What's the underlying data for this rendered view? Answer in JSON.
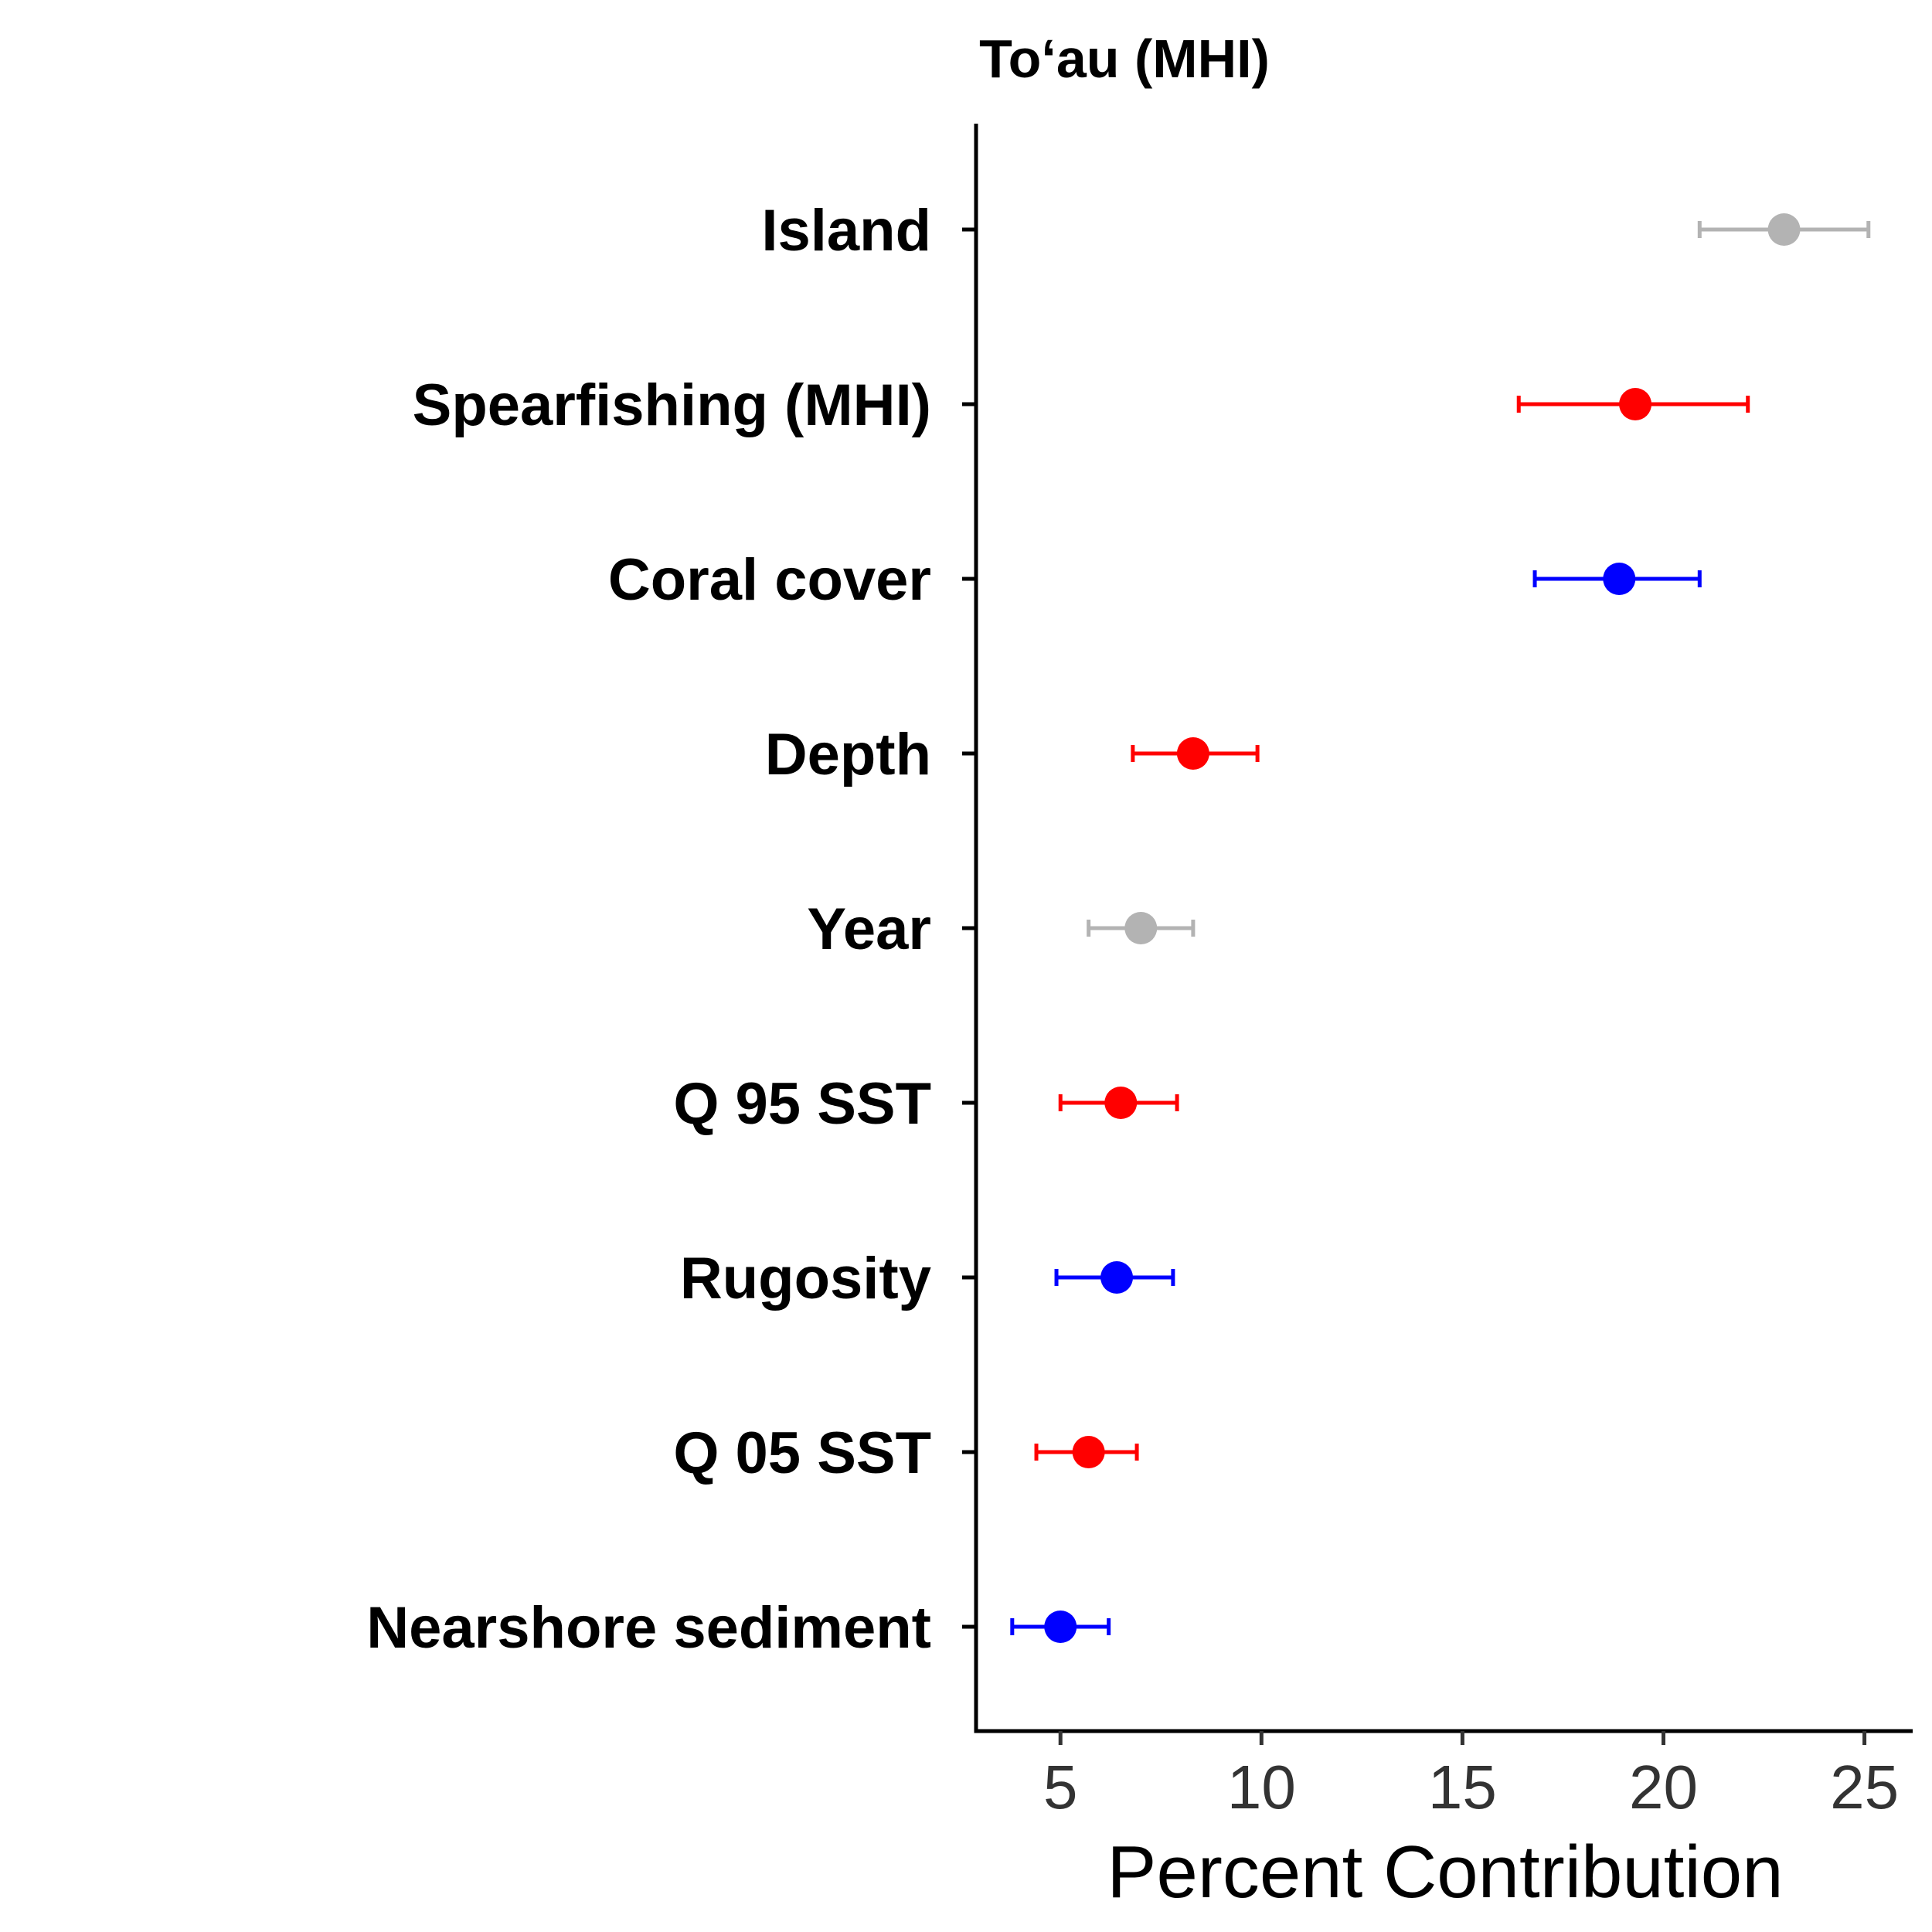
{
  "chart_data": {
    "type": "scatter",
    "title": "To‘au (MHI)",
    "xlabel": "Percent Contribution",
    "ylabel": "",
    "xlim": [
      2.9,
      26.2
    ],
    "xticks": [
      5,
      10,
      15,
      20,
      25
    ],
    "xtick_labels": [
      "5",
      "10",
      "15",
      "20",
      "25"
    ],
    "grid": false,
    "legend": "none",
    "points": [
      {
        "label": "Island",
        "value": 23.0,
        "lower": 20.9,
        "upper": 25.1,
        "color": "#b3b3b3"
      },
      {
        "label": "Spearfishing (MHI)",
        "value": 19.3,
        "lower": 16.4,
        "upper": 22.1,
        "color": "#ff0000"
      },
      {
        "label": "Coral cover",
        "value": 18.9,
        "lower": 16.8,
        "upper": 20.9,
        "color": "#0000ff"
      },
      {
        "label": "Depth",
        "value": 8.3,
        "lower": 6.8,
        "upper": 9.9,
        "color": "#ff0000"
      },
      {
        "label": "Year",
        "value": 7.0,
        "lower": 5.7,
        "upper": 8.3,
        "color": "#b3b3b3"
      },
      {
        "label": "Q 95 SST",
        "value": 6.5,
        "lower": 5.0,
        "upper": 7.9,
        "color": "#ff0000"
      },
      {
        "label": "Rugosity",
        "value": 6.4,
        "lower": 4.9,
        "upper": 7.8,
        "color": "#0000ff"
      },
      {
        "label": "Q 05 SST",
        "value": 5.7,
        "lower": 4.4,
        "upper": 6.9,
        "color": "#ff0000"
      },
      {
        "label": "Nearshore sediment",
        "value": 5.0,
        "lower": 3.8,
        "upper": 6.2,
        "color": "#0000ff"
      }
    ]
  }
}
